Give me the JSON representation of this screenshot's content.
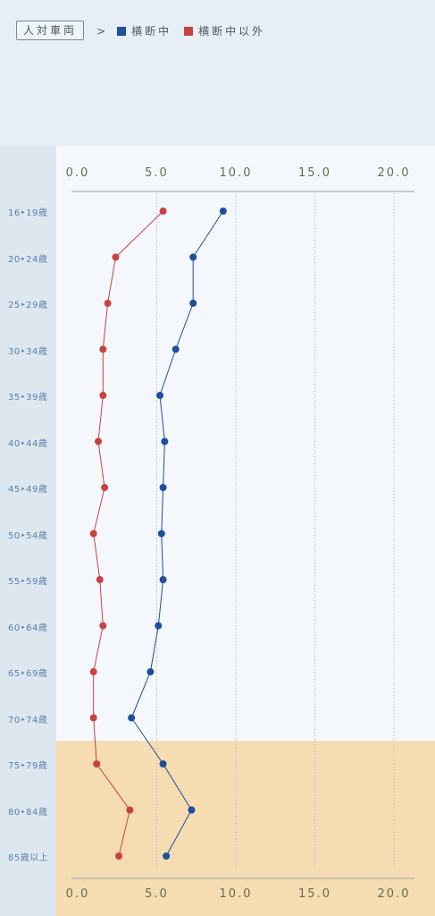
{
  "header": {
    "tag_label": "人対車両",
    "arrow": ">",
    "legend": [
      {
        "label": "横断中",
        "color": "#1f4e9c"
      },
      {
        "label": "横断中以外",
        "color": "#c84242"
      }
    ]
  },
  "highlight_color": "#f5dcb1",
  "chart_data": {
    "type": "line",
    "orientation": "horizontal",
    "title": "",
    "xlabel": "",
    "ylabel": "",
    "xlim": [
      0,
      20
    ],
    "x_ticks": [
      "0.0",
      "5.0",
      "10.0",
      "15.0",
      "20.0"
    ],
    "grid": true,
    "categories": [
      "16‣19歳",
      "20‣24歳",
      "25‣29歳",
      "30‣34歳",
      "35‣39歳",
      "40‣44歳",
      "45‣49歳",
      "50‣54歳",
      "55‣59歳",
      "60‣64歳",
      "65‣69歳",
      "70‣74歳",
      "75‣79歳",
      "80‣84歳",
      "85歳以上"
    ],
    "highlighted_categories": [
      "75‣79歳",
      "80‣84歳",
      "85歳以上"
    ],
    "series": [
      {
        "name": "横断中",
        "color": "#1f4e9c",
        "values": [
          9.2,
          7.3,
          7.3,
          6.2,
          5.2,
          5.5,
          5.4,
          5.3,
          5.4,
          5.1,
          4.6,
          3.4,
          5.4,
          7.2,
          5.6
        ]
      },
      {
        "name": "横断中以外",
        "color": "#c84242",
        "values": [
          5.4,
          2.4,
          1.9,
          1.6,
          1.6,
          1.3,
          1.7,
          1.0,
          1.4,
          1.6,
          1.0,
          1.0,
          1.2,
          3.3,
          2.6
        ]
      }
    ]
  }
}
